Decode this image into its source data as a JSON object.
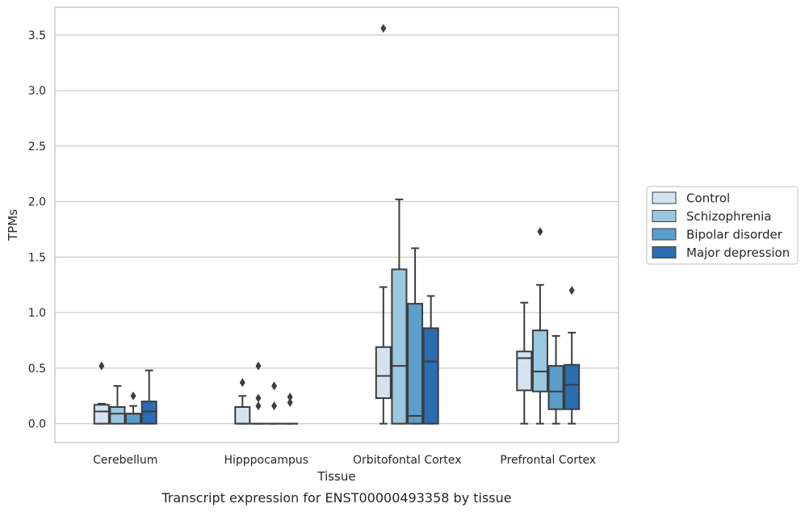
{
  "caption": "Transcript expression for ENST00000493358 by tissue",
  "chart_data": {
    "type": "box",
    "xlabel": "Tissue",
    "ylabel": "TPMs",
    "ylim": [
      -0.17,
      3.75
    ],
    "yticks": [
      "0.0",
      "0.5",
      "1.0",
      "1.5",
      "2.0",
      "2.5",
      "3.0",
      "3.5"
    ],
    "grid": true,
    "legend_placement": "right",
    "categories": [
      "Cerebellum",
      "Hipppocampus",
      "Orbitofontal Cortex",
      "Prefrontal Cortex"
    ],
    "series": [
      {
        "name": "Control",
        "color": "#d3e3f2",
        "boxes": [
          {
            "whislo": 0.0,
            "q1": 0.0,
            "med": 0.11,
            "q3": 0.17,
            "whishi": 0.18,
            "fliers": [
              0.52
            ]
          },
          {
            "whislo": 0.0,
            "q1": 0.0,
            "med": 0.0,
            "q3": 0.15,
            "whishi": 0.25,
            "fliers": [
              0.37
            ]
          },
          {
            "whislo": 0.0,
            "q1": 0.23,
            "med": 0.43,
            "q3": 0.69,
            "whishi": 1.23,
            "fliers": [
              3.56
            ]
          },
          {
            "whislo": 0.0,
            "q1": 0.3,
            "med": 0.59,
            "q3": 0.65,
            "whishi": 1.09,
            "fliers": []
          }
        ]
      },
      {
        "name": "Schizophrenia",
        "color": "#9ac8e0",
        "boxes": [
          {
            "whislo": 0.0,
            "q1": 0.0,
            "med": 0.09,
            "q3": 0.15,
            "whishi": 0.34,
            "fliers": []
          },
          {
            "whislo": 0.0,
            "q1": 0.0,
            "med": 0.0,
            "q3": 0.0,
            "whishi": 0.0,
            "fliers": [
              0.52,
              0.23,
              0.16
            ]
          },
          {
            "whislo": 0.0,
            "q1": 0.0,
            "med": 0.52,
            "q3": 1.39,
            "whishi": 2.02,
            "fliers": []
          },
          {
            "whislo": 0.0,
            "q1": 0.29,
            "med": 0.47,
            "q3": 0.84,
            "whishi": 1.25,
            "fliers": [
              1.73
            ]
          }
        ]
      },
      {
        "name": "Bipolar disorder",
        "color": "#5a9ec9",
        "boxes": [
          {
            "whislo": 0.0,
            "q1": 0.0,
            "med": 0.09,
            "q3": 0.09,
            "whishi": 0.16,
            "fliers": [
              0.25
            ]
          },
          {
            "whislo": 0.0,
            "q1": 0.0,
            "med": 0.0,
            "q3": 0.0,
            "whishi": 0.0,
            "fliers": [
              0.34,
              0.16
            ]
          },
          {
            "whislo": 0.0,
            "q1": 0.0,
            "med": 0.07,
            "q3": 1.08,
            "whishi": 1.58,
            "fliers": []
          },
          {
            "whislo": 0.0,
            "q1": 0.13,
            "med": 0.29,
            "q3": 0.52,
            "whishi": 0.79,
            "fliers": []
          }
        ]
      },
      {
        "name": "Major depression",
        "color": "#2a6db0",
        "boxes": [
          {
            "whislo": 0.0,
            "q1": 0.0,
            "med": 0.11,
            "q3": 0.2,
            "whishi": 0.48,
            "fliers": []
          },
          {
            "whislo": 0.0,
            "q1": 0.0,
            "med": 0.0,
            "q3": 0.0,
            "whishi": 0.0,
            "fliers": [
              0.24,
              0.19
            ]
          },
          {
            "whislo": 0.0,
            "q1": 0.0,
            "med": 0.56,
            "q3": 0.86,
            "whishi": 1.15,
            "fliers": []
          },
          {
            "whislo": 0.0,
            "q1": 0.13,
            "med": 0.35,
            "q3": 0.53,
            "whishi": 0.82,
            "fliers": [
              1.2
            ]
          }
        ]
      }
    ]
  }
}
